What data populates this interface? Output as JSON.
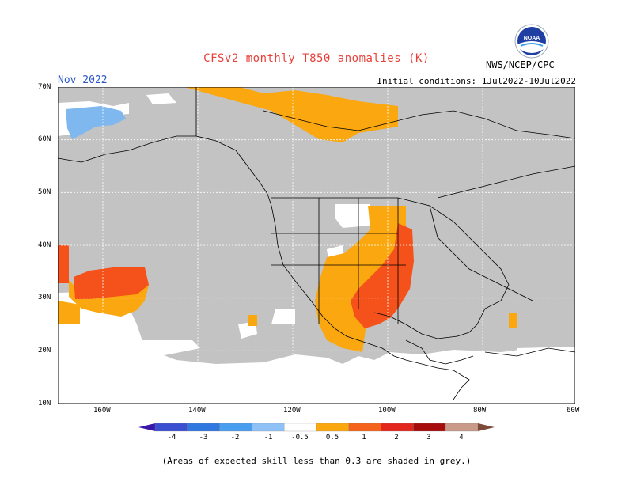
{
  "header": {
    "title": "CFSv2 monthly T850 anomalies (K)",
    "month": "Nov 2022",
    "init": "Initial conditions: 1Jul2022-10Jul2022",
    "agency": "NWS/NCEP/CPC",
    "logo_text": "NOAA"
  },
  "axes": {
    "lat_labels": [
      "70N",
      "60N",
      "50N",
      "40N",
      "30N",
      "20N",
      "10N"
    ],
    "lon_labels": [
      "160W",
      "140W",
      "120W",
      "100W",
      "80W",
      "60W"
    ]
  },
  "colorbar": {
    "ticks": [
      "-4",
      "-3",
      "-2",
      "-1",
      "-0.5",
      "0.5",
      "1",
      "2",
      "3",
      "4"
    ],
    "colors": [
      "#3a17a6",
      "#3b4fd1",
      "#2f78df",
      "#4a9ef0",
      "#8ec2f7",
      "#ffffff",
      "#fba70f",
      "#f4621b",
      "#e3261c",
      "#a60c0c",
      "#c99a8a",
      "#7d4a3a"
    ]
  },
  "colors": {
    "grey": "#c3c3c3",
    "orange": "#fba70f",
    "red_orange": "#f5511b",
    "blue": "#7fb7ef"
  },
  "footer": "(Areas of expected skill less than 0.3 are shaded in grey.)"
}
